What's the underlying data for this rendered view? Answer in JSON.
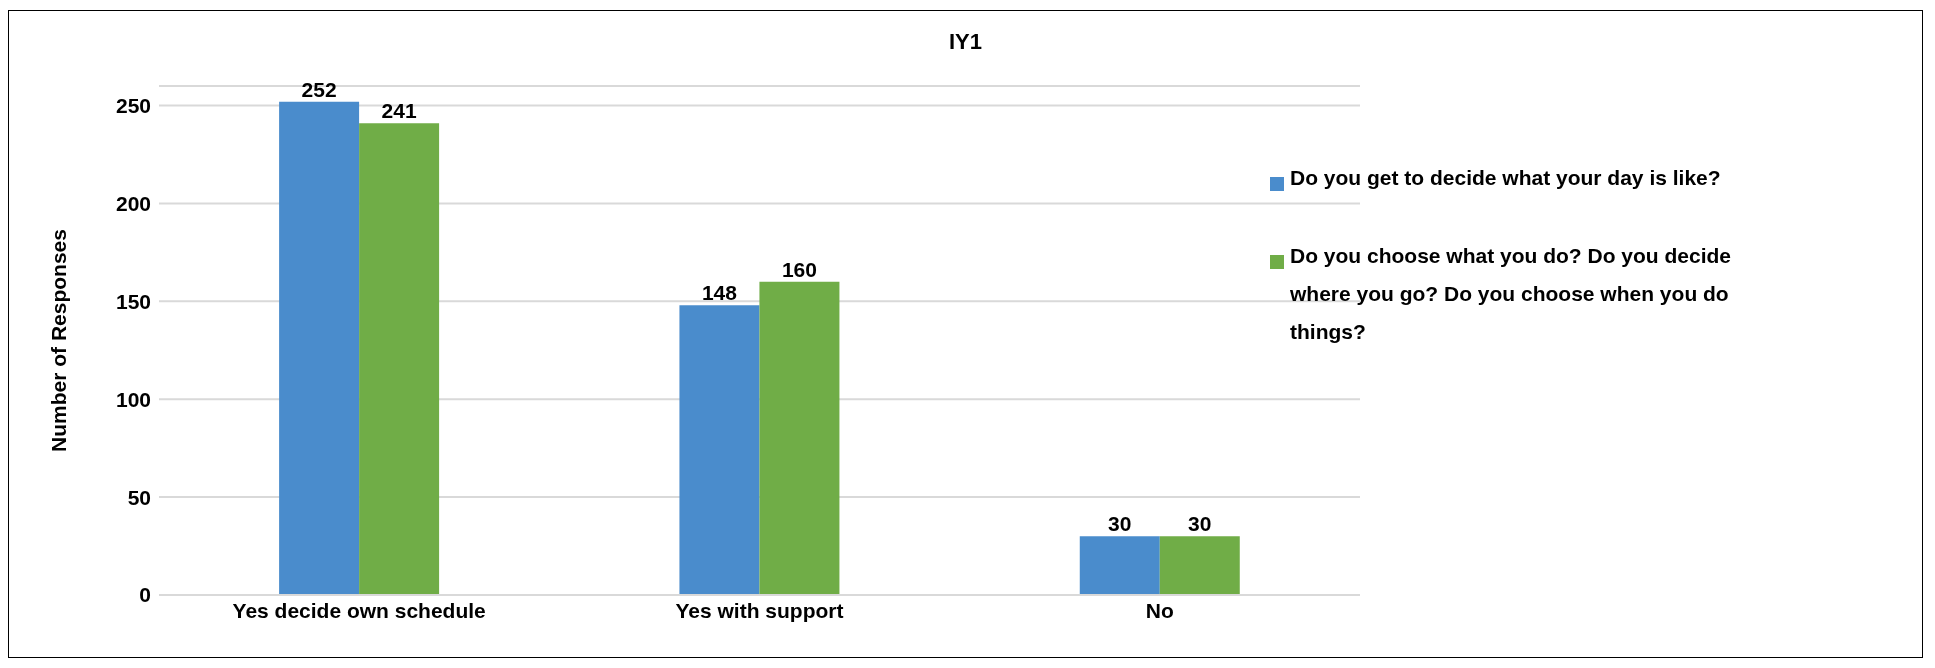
{
  "chart_data": {
    "type": "bar",
    "title": "IY1",
    "ylabel": "Number of Responses",
    "categories": [
      "Yes decide own schedule",
      "Yes with support",
      "No"
    ],
    "series": [
      {
        "name": "Do you get to decide what your day is like?",
        "color": "#4a8ccc",
        "values": [
          252,
          148,
          30
        ]
      },
      {
        "name": "Do you choose what you do? Do you decide where you go? Do you choose when you do things?",
        "color": "#70ad47",
        "values": [
          241,
          160,
          30
        ]
      }
    ],
    "ylim": [
      0,
      260
    ],
    "yticks": [
      0,
      50,
      100,
      150,
      200,
      250
    ],
    "grid": "y",
    "legend": "right",
    "data_labels": true
  }
}
